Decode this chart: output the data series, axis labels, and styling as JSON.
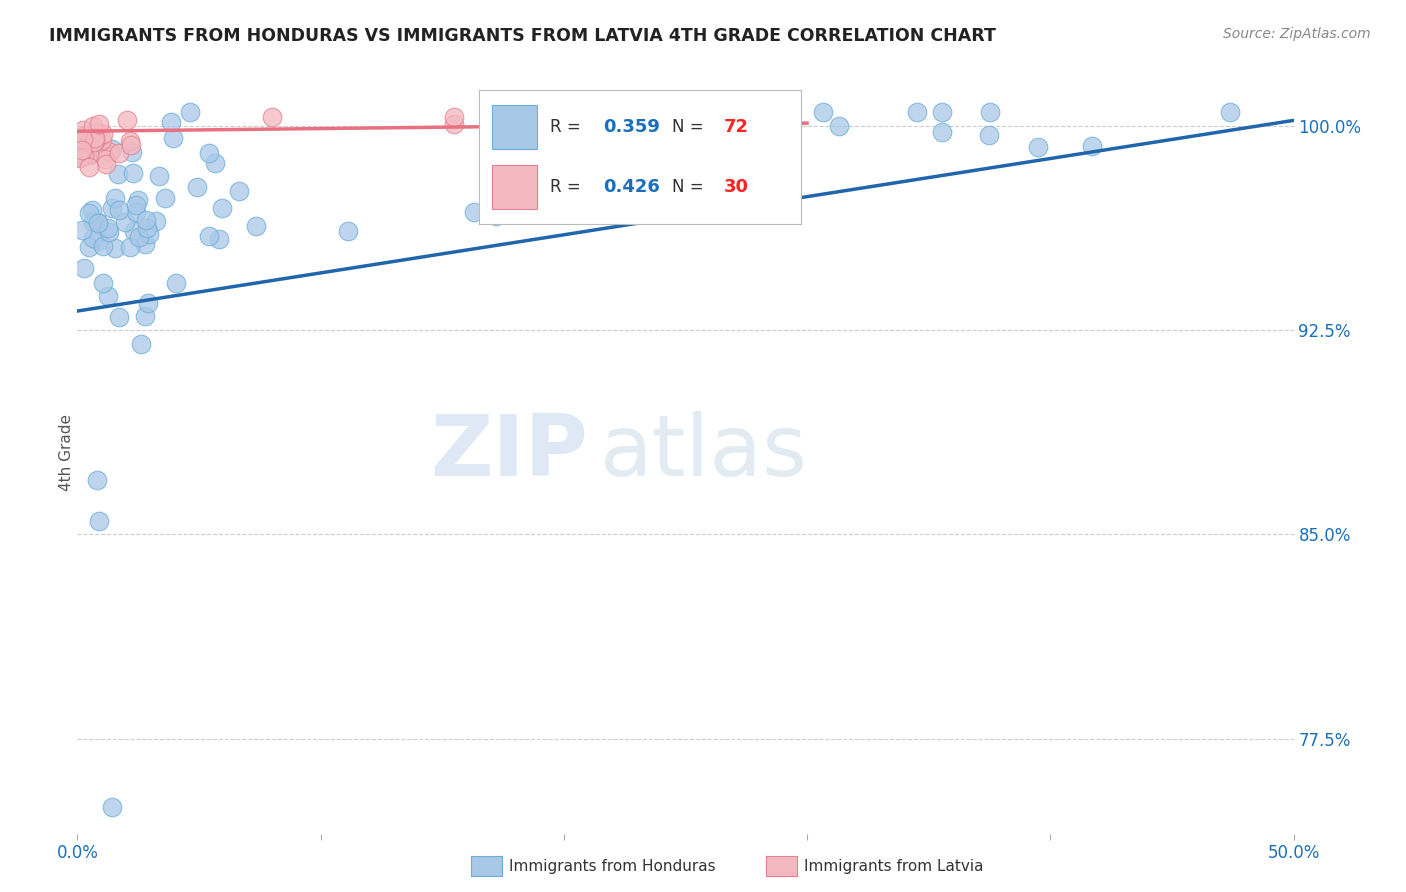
{
  "title": "IMMIGRANTS FROM HONDURAS VS IMMIGRANTS FROM LATVIA 4TH GRADE CORRELATION CHART",
  "source": "Source: ZipAtlas.com",
  "ylabel": "4th Grade",
  "xlim": [
    0.0,
    0.5
  ],
  "ylim": [
    0.74,
    1.02
  ],
  "yticks": [
    0.775,
    0.85,
    0.925,
    1.0
  ],
  "ytick_labels": [
    "77.5%",
    "85.0%",
    "92.5%",
    "100.0%"
  ],
  "xticks": [
    0.0,
    0.1,
    0.2,
    0.3,
    0.4,
    0.5
  ],
  "xtick_labels": [
    "0.0%",
    "",
    "",
    "",
    "",
    "50.0%"
  ],
  "grid_color": "#cccccc",
  "background_color": "#ffffff",
  "honduras_color": "#a8c8e8",
  "honduras_edge": "#6baed6",
  "latvia_color": "#f4b8c0",
  "latvia_edge": "#e08090",
  "honduras_R": 0.359,
  "honduras_N": 72,
  "latvia_R": 0.426,
  "latvia_N": 30,
  "honduras_line_color": "#2166ac",
  "latvia_line_color": "#e87080",
  "legend_R_color": "#1a6fba",
  "legend_N_color": "#ff2222",
  "watermark_zip": "ZIP",
  "watermark_atlas": "atlas",
  "honduras_line_x0": 0.0,
  "honduras_line_y0": 0.932,
  "honduras_line_x1": 0.5,
  "honduras_line_y1": 1.002,
  "latvia_line_x0": 0.0,
  "latvia_line_y0": 0.998,
  "latvia_line_x1": 0.3,
  "latvia_line_y1": 1.001
}
